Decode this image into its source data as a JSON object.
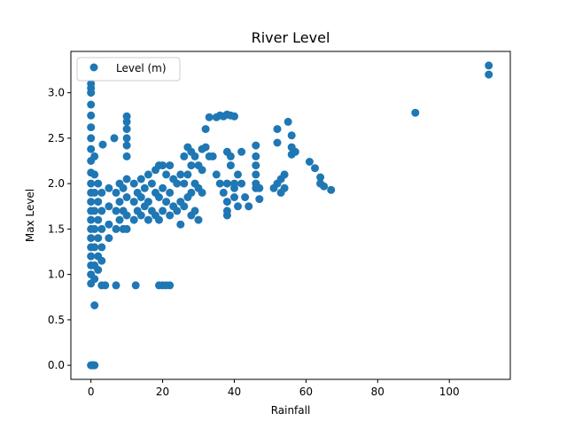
{
  "chart_data": {
    "type": "scatter",
    "title": "River Level",
    "xlabel": "Rainfall",
    "ylabel": "Max Level",
    "xlim": [
      -5.6,
      117.0
    ],
    "ylim": [
      -0.155,
      3.455
    ],
    "xticks": [
      0,
      20,
      40,
      60,
      80,
      100
    ],
    "yticks": [
      0.0,
      0.5,
      1.0,
      1.5,
      2.0,
      2.5,
      3.0
    ],
    "xtick_labels": [
      "0",
      "20",
      "40",
      "60",
      "80",
      "100"
    ],
    "ytick_labels": [
      "0.0",
      "0.5",
      "1.0",
      "1.5",
      "2.0",
      "2.5",
      "3.0"
    ],
    "grid": false,
    "legend_position": "top-left",
    "colors": {
      "series": "#1f77b4"
    },
    "series": [
      {
        "name": "Level (m)",
        "marker": "circle",
        "points": [
          [
            0,
            0.0
          ],
          [
            0.2,
            0.0
          ],
          [
            0.4,
            0.0
          ],
          [
            0.6,
            0.0
          ],
          [
            0.8,
            0.0
          ],
          [
            1.0,
            0.0
          ],
          [
            1.0,
            0.66
          ],
          [
            0,
            3.1
          ],
          [
            0,
            3.05
          ],
          [
            0,
            3.0
          ],
          [
            0,
            2.87
          ],
          [
            0,
            2.75
          ],
          [
            0,
            2.62
          ],
          [
            0,
            2.5
          ],
          [
            0,
            2.38
          ],
          [
            0,
            2.25
          ],
          [
            0,
            2.12
          ],
          [
            0,
            2.0
          ],
          [
            0,
            1.9
          ],
          [
            0,
            1.8
          ],
          [
            0,
            1.7
          ],
          [
            0,
            1.6
          ],
          [
            0,
            1.5
          ],
          [
            0,
            1.4
          ],
          [
            0,
            1.3
          ],
          [
            0,
            1.2
          ],
          [
            0,
            1.1
          ],
          [
            0,
            1.0
          ],
          [
            0,
            0.9
          ],
          [
            1,
            2.3
          ],
          [
            1,
            2.1
          ],
          [
            1,
            1.9
          ],
          [
            1,
            1.7
          ],
          [
            1,
            1.5
          ],
          [
            1,
            1.3
          ],
          [
            1,
            1.1
          ],
          [
            1,
            0.95
          ],
          [
            2,
            2.0
          ],
          [
            2,
            1.8
          ],
          [
            2,
            1.6
          ],
          [
            2,
            1.4
          ],
          [
            2,
            1.2
          ],
          [
            2,
            1.05
          ],
          [
            3,
            1.9
          ],
          [
            3,
            1.7
          ],
          [
            3,
            1.5
          ],
          [
            3,
            1.3
          ],
          [
            3,
            1.15
          ],
          [
            3,
            0.88
          ],
          [
            3.3,
            2.43
          ],
          [
            4,
            0.88
          ],
          [
            5,
            1.95
          ],
          [
            5,
            1.75
          ],
          [
            5,
            1.55
          ],
          [
            5,
            1.4
          ],
          [
            6.5,
            2.5
          ],
          [
            7,
            0.88
          ],
          [
            7,
            1.9
          ],
          [
            7,
            1.7
          ],
          [
            7,
            1.5
          ],
          [
            8,
            2.0
          ],
          [
            8,
            1.8
          ],
          [
            8,
            1.6
          ],
          [
            9,
            1.95
          ],
          [
            9,
            1.7
          ],
          [
            9,
            1.5
          ],
          [
            10,
            2.74
          ],
          [
            10,
            2.68
          ],
          [
            10,
            2.6
          ],
          [
            10,
            2.5
          ],
          [
            10,
            2.42
          ],
          [
            10,
            2.3
          ],
          [
            10,
            2.05
          ],
          [
            10,
            1.85
          ],
          [
            10,
            1.65
          ],
          [
            10,
            1.5
          ],
          [
            12,
            2.0
          ],
          [
            12,
            1.8
          ],
          [
            12,
            1.6
          ],
          [
            12.5,
            0.88
          ],
          [
            13,
            1.9
          ],
          [
            13,
            1.7
          ],
          [
            14,
            2.05
          ],
          [
            14,
            1.85
          ],
          [
            14,
            1.65
          ],
          [
            15,
            1.95
          ],
          [
            15,
            1.75
          ],
          [
            16,
            2.1
          ],
          [
            16,
            1.8
          ],
          [
            16,
            1.6
          ],
          [
            17,
            2.0
          ],
          [
            17,
            1.7
          ],
          [
            18,
            2.15
          ],
          [
            18,
            1.9
          ],
          [
            18,
            1.65
          ],
          [
            19,
            2.2
          ],
          [
            19,
            1.85
          ],
          [
            19,
            1.6
          ],
          [
            19,
            0.88
          ],
          [
            20,
            0.88
          ],
          [
            21,
            0.88
          ],
          [
            22,
            0.88
          ],
          [
            20,
            2.2
          ],
          [
            20,
            1.95
          ],
          [
            20,
            1.7
          ],
          [
            21,
            2.1
          ],
          [
            21,
            1.8
          ],
          [
            22,
            2.2
          ],
          [
            22,
            1.9
          ],
          [
            22,
            1.65
          ],
          [
            23,
            2.05
          ],
          [
            23,
            1.75
          ],
          [
            24,
            2.0
          ],
          [
            24,
            1.7
          ],
          [
            25,
            2.1
          ],
          [
            25,
            1.8
          ],
          [
            25,
            1.55
          ],
          [
            26,
            2.3
          ],
          [
            26,
            2.0
          ],
          [
            26,
            1.75
          ],
          [
            27,
            2.4
          ],
          [
            27,
            2.1
          ],
          [
            27,
            1.85
          ],
          [
            28,
            2.35
          ],
          [
            28,
            2.2
          ],
          [
            28,
            1.9
          ],
          [
            28,
            1.65
          ],
          [
            29,
            2.3
          ],
          [
            29,
            2.0
          ],
          [
            29,
            1.7
          ],
          [
            30,
            2.2
          ],
          [
            30,
            1.95
          ],
          [
            30,
            1.6
          ],
          [
            31,
            2.15
          ],
          [
            31,
            1.9
          ],
          [
            31,
            2.38
          ],
          [
            32,
            2.4
          ],
          [
            32,
            2.6
          ],
          [
            33,
            2.73
          ],
          [
            33,
            2.3
          ],
          [
            35,
            2.73
          ],
          [
            36,
            2.75
          ],
          [
            37,
            2.74
          ],
          [
            38,
            2.76
          ],
          [
            39,
            2.75
          ],
          [
            40,
            2.74
          ],
          [
            34,
            2.3
          ],
          [
            35,
            2.1
          ],
          [
            36,
            2.0
          ],
          [
            37,
            1.9
          ],
          [
            38,
            2.35
          ],
          [
            38,
            2.0
          ],
          [
            38,
            1.65
          ],
          [
            38,
            1.7
          ],
          [
            38,
            1.8
          ],
          [
            39,
            2.3
          ],
          [
            39,
            2.2
          ],
          [
            40,
            2.0
          ],
          [
            40,
            1.95
          ],
          [
            40,
            1.85
          ],
          [
            41,
            2.1
          ],
          [
            41,
            1.75
          ],
          [
            42,
            2.35
          ],
          [
            42,
            2.0
          ],
          [
            43,
            1.85
          ],
          [
            44,
            1.75
          ],
          [
            46,
            2.42
          ],
          [
            46,
            2.3
          ],
          [
            46,
            2.2
          ],
          [
            46,
            2.1
          ],
          [
            46,
            2.0
          ],
          [
            46,
            1.95
          ],
          [
            47,
            1.95
          ],
          [
            47,
            1.83
          ],
          [
            51,
            1.95
          ],
          [
            52,
            2.0
          ],
          [
            52,
            2.45
          ],
          [
            52,
            2.6
          ],
          [
            53,
            1.9
          ],
          [
            53,
            2.05
          ],
          [
            54,
            1.95
          ],
          [
            54,
            2.1
          ],
          [
            55,
            2.68
          ],
          [
            56,
            2.53
          ],
          [
            56,
            2.4
          ],
          [
            56,
            2.32
          ],
          [
            57,
            2.35
          ],
          [
            61,
            2.24
          ],
          [
            62.5,
            2.17
          ],
          [
            64,
            2.07
          ],
          [
            64,
            2.0
          ],
          [
            65,
            1.97
          ],
          [
            67,
            1.93
          ],
          [
            90.5,
            2.78
          ],
          [
            111,
            3.3
          ],
          [
            111,
            3.2
          ]
        ]
      }
    ]
  }
}
